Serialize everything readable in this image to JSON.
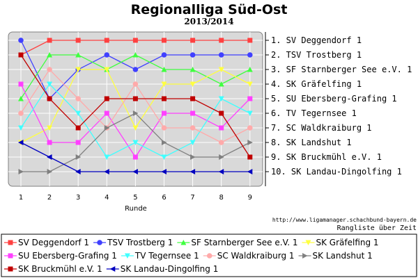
{
  "chart_data": {
    "type": "line",
    "title": "Regionalliga Süd-Ost",
    "subtitle": "2013/2014",
    "xlabel": "Runde",
    "ylabel": "",
    "x": [
      1,
      2,
      3,
      4,
      5,
      6,
      7,
      8,
      9
    ],
    "ylim": [
      1,
      10
    ],
    "y_inverted": true,
    "grid": true,
    "ranking": [
      "1. SV Deggendorf 1",
      "2. TSV Trostberg 1",
      "3. SF Starnberger See e.V. 1",
      "4. SK Gräfelfing 1",
      "5. SU Ebersberg-Grafing 1",
      "6. TV Tegernsee 1",
      "7. SC Waldkraiburg 1",
      "8. SK Landshut 1",
      "9. SK Bruckmühl e.V. 1",
      "10. SK Landau-Dingolfing 1"
    ],
    "series": [
      {
        "name": "SV Deggendorf 1",
        "color": "#ff4040",
        "marker": "square",
        "values": [
          2,
          1,
          1,
          1,
          1,
          1,
          1,
          1,
          1
        ]
      },
      {
        "name": "TSV Trostberg 1",
        "color": "#4040ff",
        "marker": "circle",
        "values": [
          1,
          5,
          3,
          2,
          3,
          2,
          2,
          2,
          2
        ]
      },
      {
        "name": "SF Starnberger See e.V. 1",
        "color": "#40ff40",
        "marker": "triangle-up",
        "values": [
          5,
          2,
          2,
          3,
          2,
          3,
          3,
          4,
          3
        ]
      },
      {
        "name": "SK Gräfelfing 1",
        "color": "#ffff40",
        "marker": "triangle-down",
        "values": [
          8,
          7,
          3,
          3,
          7,
          4,
          4,
          3,
          4
        ]
      },
      {
        "name": "SU Ebersberg-Grafing 1",
        "color": "#ff40ff",
        "marker": "square",
        "values": [
          4,
          8,
          8,
          6,
          9,
          6,
          6,
          7,
          5
        ]
      },
      {
        "name": "TV Tegernsee 1",
        "color": "#40ffff",
        "marker": "triangle-down",
        "values": [
          7,
          4,
          6,
          9,
          8,
          9,
          8,
          5,
          6
        ]
      },
      {
        "name": "SC Waldkraiburg 1",
        "color": "#ffaaaa",
        "marker": "circle",
        "values": [
          6,
          3,
          5,
          7,
          4,
          7,
          7,
          8,
          7
        ]
      },
      {
        "name": "SK Landshut 1",
        "color": "#808080",
        "marker": "triangle-right",
        "values": [
          10,
          10,
          9,
          7,
          6,
          8,
          9,
          9,
          8
        ]
      },
      {
        "name": "SK Bruckmühl e.V. 1",
        "color": "#c00000",
        "marker": "square",
        "values": [
          2,
          5,
          7,
          5,
          5,
          5,
          5,
          6,
          9
        ]
      },
      {
        "name": "SK Landau-Dingolfing 1",
        "color": "#0000c0",
        "marker": "triangle-left",
        "values": [
          8,
          9,
          10,
          10,
          10,
          10,
          10,
          10,
          10
        ]
      }
    ],
    "source_url": "http://www.ligamanager.schachbund-bayern.de",
    "caption": "Rangliste über Zeit"
  }
}
